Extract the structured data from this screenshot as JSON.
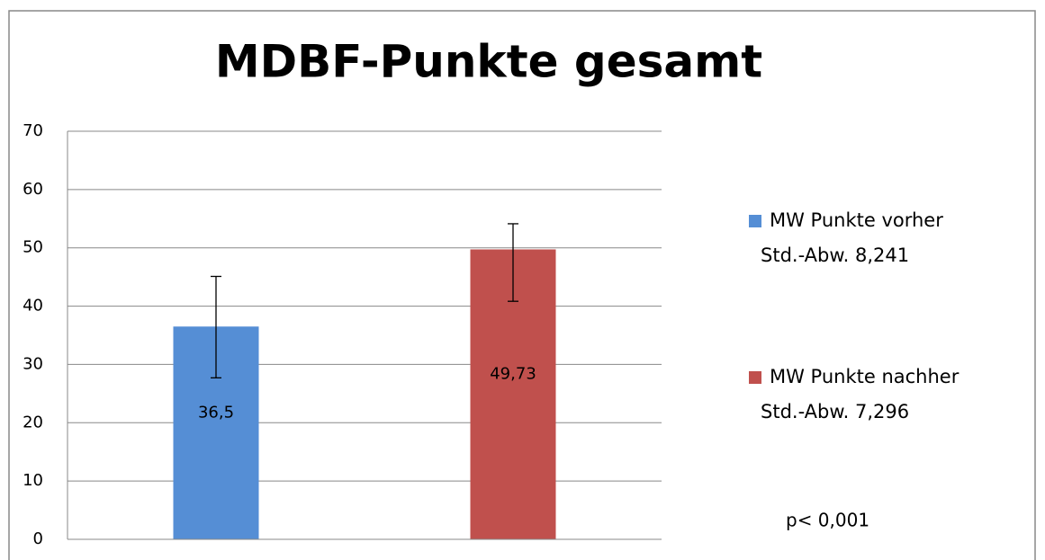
{
  "chart_data": {
    "type": "bar",
    "title": "MDBF-Punkte gesamt",
    "categories": [
      null
    ],
    "series": [
      {
        "name": "MW Punkte vorher",
        "std_label": "Std.-Abw. 8,241",
        "color": "#558ed5",
        "values": [
          36.5
        ],
        "value_labels": [
          "36,5"
        ],
        "error_minus": [
          8.8
        ],
        "error_plus": [
          8.6
        ]
      },
      {
        "name": "MW Punkte nachher",
        "std_label": "Std.-Abw. 7,296",
        "color": "#c0504d",
        "values": [
          49.73
        ],
        "value_labels": [
          "49,73"
        ],
        "error_minus": [
          8.9
        ],
        "error_plus": [
          4.4
        ]
      }
    ],
    "annotation": "p< 0,001",
    "ylim": [
      0,
      70
    ],
    "yticks": [
      0,
      10,
      20,
      30,
      40,
      50,
      60,
      70
    ],
    "grid": true,
    "legend": "right"
  }
}
